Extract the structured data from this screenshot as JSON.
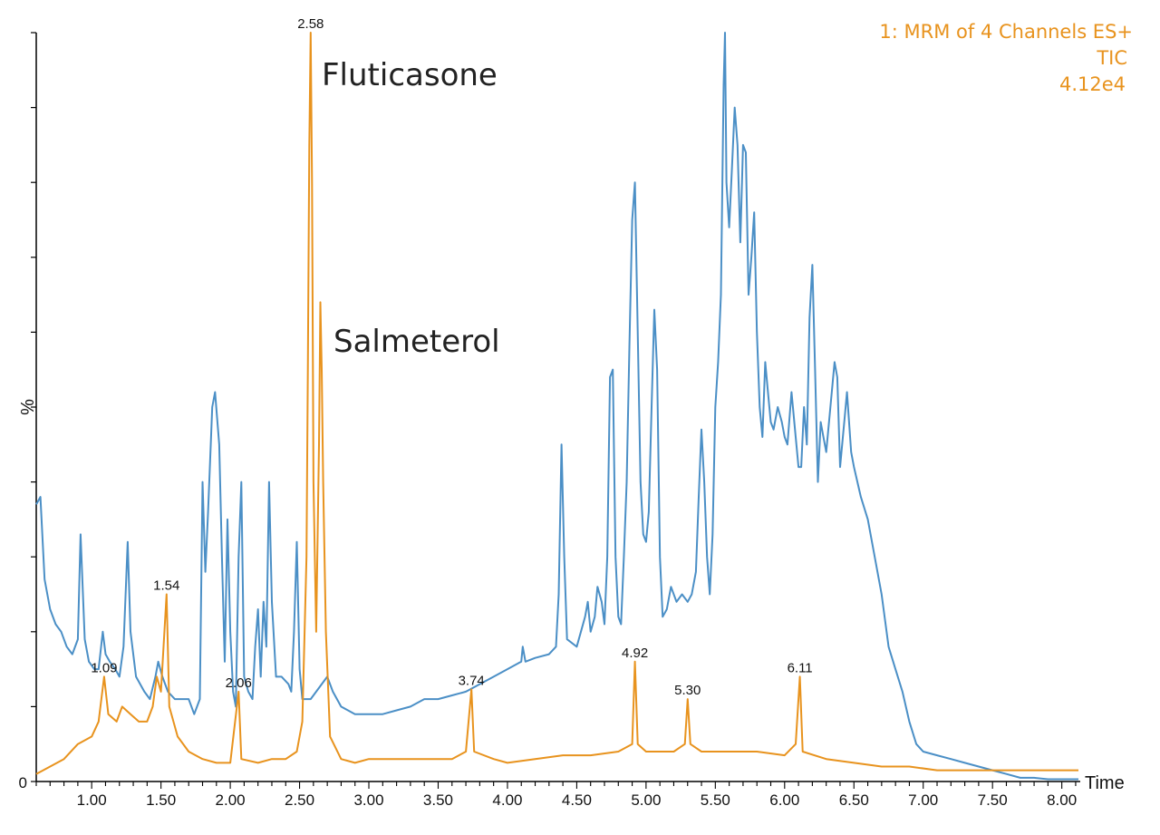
{
  "chart_data": {
    "type": "line",
    "title": "",
    "xlabel": "Time",
    "ylabel": "%",
    "xlim": [
      0.6,
      8.12
    ],
    "ylim": [
      0,
      100
    ],
    "x_ticks": [
      "1.00",
      "1.50",
      "2.00",
      "2.50",
      "3.00",
      "3.50",
      "4.00",
      "4.50",
      "5.00",
      "5.50",
      "6.00",
      "6.50",
      "7.00",
      "7.50",
      "8.00"
    ],
    "y_tick_label_zero": "0",
    "info": {
      "line1": "1: MRM of 4 Channels ES+",
      "line2": "TIC",
      "line3": "4.12e4",
      "color": "#e8931e"
    },
    "annotations": [
      {
        "text": "Fluticasone",
        "x": 2.58
      },
      {
        "text": "Salmeterol",
        "x": 2.66
      }
    ],
    "peak_labels": [
      {
        "text": "2.58",
        "x": 2.58,
        "y": 100
      },
      {
        "text": "1.54",
        "x": 1.54,
        "y": 25
      },
      {
        "text": "1.09",
        "x": 1.09,
        "y": 14
      },
      {
        "text": "2.06",
        "x": 2.06,
        "y": 12
      },
      {
        "text": "3.74",
        "x": 3.74,
        "y": 12.3
      },
      {
        "text": "4.92",
        "x": 4.92,
        "y": 16
      },
      {
        "text": "5.30",
        "x": 5.3,
        "y": 11
      },
      {
        "text": "6.11",
        "x": 6.11,
        "y": 14
      }
    ],
    "series": [
      {
        "color": "#4b8fc6",
        "points": [
          [
            0.6,
            37
          ],
          [
            0.63,
            38
          ],
          [
            0.66,
            27
          ],
          [
            0.7,
            23
          ],
          [
            0.74,
            21
          ],
          [
            0.78,
            20
          ],
          [
            0.82,
            18
          ],
          [
            0.86,
            17
          ],
          [
            0.9,
            19
          ],
          [
            0.92,
            33
          ],
          [
            0.95,
            19
          ],
          [
            0.98,
            16
          ],
          [
            1.02,
            15
          ],
          [
            1.05,
            15
          ],
          [
            1.08,
            20
          ],
          [
            1.1,
            17
          ],
          [
            1.13,
            16
          ],
          [
            1.17,
            15
          ],
          [
            1.2,
            14
          ],
          [
            1.23,
            18
          ],
          [
            1.26,
            32
          ],
          [
            1.28,
            20
          ],
          [
            1.32,
            14
          ],
          [
            1.38,
            12
          ],
          [
            1.42,
            11
          ],
          [
            1.46,
            14
          ],
          [
            1.48,
            16
          ],
          [
            1.51,
            14
          ],
          [
            1.55,
            12
          ],
          [
            1.6,
            11
          ],
          [
            1.65,
            11
          ],
          [
            1.7,
            11
          ],
          [
            1.74,
            9
          ],
          [
            1.78,
            11
          ],
          [
            1.8,
            40
          ],
          [
            1.82,
            28
          ],
          [
            1.84,
            36
          ],
          [
            1.87,
            50
          ],
          [
            1.89,
            52
          ],
          [
            1.92,
            45
          ],
          [
            1.94,
            30
          ],
          [
            1.96,
            16
          ],
          [
            1.98,
            35
          ],
          [
            2.0,
            20
          ],
          [
            2.02,
            12
          ],
          [
            2.04,
            10
          ],
          [
            2.06,
            30
          ],
          [
            2.08,
            40
          ],
          [
            2.1,
            14
          ],
          [
            2.13,
            12
          ],
          [
            2.16,
            11
          ],
          [
            2.18,
            18
          ],
          [
            2.2,
            23
          ],
          [
            2.22,
            14
          ],
          [
            2.24,
            24
          ],
          [
            2.26,
            18
          ],
          [
            2.28,
            40
          ],
          [
            2.3,
            24
          ],
          [
            2.33,
            14
          ],
          [
            2.37,
            14
          ],
          [
            2.42,
            13
          ],
          [
            2.44,
            12
          ],
          [
            2.46,
            20
          ],
          [
            2.48,
            32
          ],
          [
            2.5,
            15
          ],
          [
            2.52,
            11
          ],
          [
            2.55,
            11
          ],
          [
            2.58,
            11
          ],
          [
            2.62,
            12
          ],
          [
            2.66,
            13
          ],
          [
            2.7,
            14
          ],
          [
            2.74,
            12
          ],
          [
            2.8,
            10
          ],
          [
            2.9,
            9
          ],
          [
            3.0,
            9
          ],
          [
            3.1,
            9
          ],
          [
            3.2,
            9.5
          ],
          [
            3.3,
            10
          ],
          [
            3.4,
            11
          ],
          [
            3.5,
            11
          ],
          [
            3.6,
            11.5
          ],
          [
            3.7,
            12
          ],
          [
            3.8,
            13
          ],
          [
            3.9,
            14
          ],
          [
            4.0,
            15
          ],
          [
            4.1,
            16
          ],
          [
            4.11,
            18
          ],
          [
            4.13,
            16
          ],
          [
            4.2,
            16.5
          ],
          [
            4.3,
            17
          ],
          [
            4.35,
            18
          ],
          [
            4.37,
            25
          ],
          [
            4.39,
            45
          ],
          [
            4.41,
            30
          ],
          [
            4.43,
            19
          ],
          [
            4.5,
            18
          ],
          [
            4.56,
            22
          ],
          [
            4.58,
            24
          ],
          [
            4.6,
            20
          ],
          [
            4.63,
            22
          ],
          [
            4.65,
            26
          ],
          [
            4.68,
            24
          ],
          [
            4.7,
            21
          ],
          [
            4.72,
            30
          ],
          [
            4.74,
            54
          ],
          [
            4.76,
            55
          ],
          [
            4.78,
            30
          ],
          [
            4.8,
            22
          ],
          [
            4.82,
            21
          ],
          [
            4.84,
            30
          ],
          [
            4.86,
            40
          ],
          [
            4.88,
            58
          ],
          [
            4.9,
            75
          ],
          [
            4.92,
            80
          ],
          [
            4.94,
            60
          ],
          [
            4.96,
            40
          ],
          [
            4.98,
            33
          ],
          [
            5.0,
            32
          ],
          [
            5.02,
            36
          ],
          [
            5.04,
            50
          ],
          [
            5.06,
            63
          ],
          [
            5.08,
            55
          ],
          [
            5.1,
            30
          ],
          [
            5.12,
            22
          ],
          [
            5.15,
            23
          ],
          [
            5.18,
            26
          ],
          [
            5.22,
            24
          ],
          [
            5.26,
            25
          ],
          [
            5.3,
            24
          ],
          [
            5.33,
            25
          ],
          [
            5.36,
            28
          ],
          [
            5.38,
            38
          ],
          [
            5.4,
            47
          ],
          [
            5.42,
            40
          ],
          [
            5.44,
            30
          ],
          [
            5.46,
            25
          ],
          [
            5.48,
            33
          ],
          [
            5.5,
            50
          ],
          [
            5.52,
            56
          ],
          [
            5.54,
            65
          ],
          [
            5.56,
            93
          ],
          [
            5.57,
            100
          ],
          [
            5.58,
            80
          ],
          [
            5.6,
            74
          ],
          [
            5.62,
            82
          ],
          [
            5.64,
            90
          ],
          [
            5.66,
            85
          ],
          [
            5.68,
            72
          ],
          [
            5.7,
            85
          ],
          [
            5.72,
            84
          ],
          [
            5.74,
            65
          ],
          [
            5.76,
            70
          ],
          [
            5.78,
            76
          ],
          [
            5.8,
            60
          ],
          [
            5.82,
            50
          ],
          [
            5.84,
            46
          ],
          [
            5.86,
            56
          ],
          [
            5.88,
            52
          ],
          [
            5.9,
            48
          ],
          [
            5.92,
            47
          ],
          [
            5.95,
            50
          ],
          [
            5.98,
            48
          ],
          [
            6.0,
            46
          ],
          [
            6.02,
            45
          ],
          [
            6.05,
            52
          ],
          [
            6.08,
            46
          ],
          [
            6.1,
            42
          ],
          [
            6.12,
            42
          ],
          [
            6.14,
            50
          ],
          [
            6.16,
            45
          ],
          [
            6.18,
            62
          ],
          [
            6.2,
            69
          ],
          [
            6.22,
            55
          ],
          [
            6.24,
            40
          ],
          [
            6.26,
            48
          ],
          [
            6.28,
            46
          ],
          [
            6.3,
            44
          ],
          [
            6.33,
            50
          ],
          [
            6.36,
            56
          ],
          [
            6.38,
            54
          ],
          [
            6.4,
            42
          ],
          [
            6.43,
            48
          ],
          [
            6.45,
            52
          ],
          [
            6.48,
            44
          ],
          [
            6.5,
            42
          ],
          [
            6.55,
            38
          ],
          [
            6.6,
            35
          ],
          [
            6.65,
            30
          ],
          [
            6.7,
            25
          ],
          [
            6.75,
            18
          ],
          [
            6.8,
            15
          ],
          [
            6.85,
            12
          ],
          [
            6.9,
            8
          ],
          [
            6.95,
            5
          ],
          [
            7.0,
            4
          ],
          [
            7.1,
            3.5
          ],
          [
            7.2,
            3
          ],
          [
            7.3,
            2.5
          ],
          [
            7.4,
            2
          ],
          [
            7.5,
            1.5
          ],
          [
            7.6,
            1
          ],
          [
            7.7,
            0.5
          ],
          [
            7.8,
            0.5
          ],
          [
            7.9,
            0.3
          ],
          [
            8.0,
            0.3
          ],
          [
            8.12,
            0.3
          ]
        ]
      },
      {
        "color": "#e8931e",
        "points": [
          [
            0.6,
            1
          ],
          [
            0.7,
            2
          ],
          [
            0.8,
            3
          ],
          [
            0.9,
            5
          ],
          [
            1.0,
            6
          ],
          [
            1.05,
            8
          ],
          [
            1.09,
            14
          ],
          [
            1.12,
            9
          ],
          [
            1.18,
            8
          ],
          [
            1.22,
            10
          ],
          [
            1.28,
            9
          ],
          [
            1.34,
            8
          ],
          [
            1.4,
            8
          ],
          [
            1.44,
            10
          ],
          [
            1.47,
            14
          ],
          [
            1.5,
            12
          ],
          [
            1.54,
            25
          ],
          [
            1.56,
            10
          ],
          [
            1.62,
            6
          ],
          [
            1.7,
            4
          ],
          [
            1.8,
            3
          ],
          [
            1.9,
            2.5
          ],
          [
            2.0,
            2.5
          ],
          [
            2.06,
            12
          ],
          [
            2.08,
            3
          ],
          [
            2.2,
            2.5
          ],
          [
            2.3,
            3
          ],
          [
            2.4,
            3
          ],
          [
            2.48,
            4
          ],
          [
            2.52,
            8
          ],
          [
            2.55,
            30
          ],
          [
            2.56,
            55
          ],
          [
            2.57,
            85
          ],
          [
            2.58,
            100
          ],
          [
            2.59,
            80
          ],
          [
            2.6,
            40
          ],
          [
            2.62,
            20
          ],
          [
            2.64,
            45
          ],
          [
            2.65,
            64
          ],
          [
            2.66,
            55
          ],
          [
            2.67,
            40
          ],
          [
            2.69,
            20
          ],
          [
            2.72,
            6
          ],
          [
            2.8,
            3
          ],
          [
            2.9,
            2.5
          ],
          [
            3.0,
            3
          ],
          [
            3.2,
            3
          ],
          [
            3.4,
            3
          ],
          [
            3.6,
            3
          ],
          [
            3.7,
            4
          ],
          [
            3.74,
            12.3
          ],
          [
            3.76,
            4
          ],
          [
            3.9,
            3
          ],
          [
            4.0,
            2.5
          ],
          [
            4.2,
            3
          ],
          [
            4.4,
            3.5
          ],
          [
            4.6,
            3.5
          ],
          [
            4.8,
            4
          ],
          [
            4.9,
            5
          ],
          [
            4.92,
            16
          ],
          [
            4.94,
            5
          ],
          [
            5.0,
            4
          ],
          [
            5.1,
            4
          ],
          [
            5.2,
            4
          ],
          [
            5.28,
            5
          ],
          [
            5.3,
            11
          ],
          [
            5.32,
            5
          ],
          [
            5.4,
            4
          ],
          [
            5.6,
            4
          ],
          [
            5.8,
            4
          ],
          [
            6.0,
            3.5
          ],
          [
            6.08,
            5
          ],
          [
            6.11,
            14
          ],
          [
            6.13,
            4
          ],
          [
            6.3,
            3
          ],
          [
            6.5,
            2.5
          ],
          [
            6.7,
            2
          ],
          [
            6.9,
            2
          ],
          [
            7.1,
            1.5
          ],
          [
            7.3,
            1.5
          ],
          [
            7.5,
            1.5
          ],
          [
            7.7,
            1.5
          ],
          [
            7.9,
            1.5
          ],
          [
            8.12,
            1.5
          ]
        ]
      }
    ]
  }
}
